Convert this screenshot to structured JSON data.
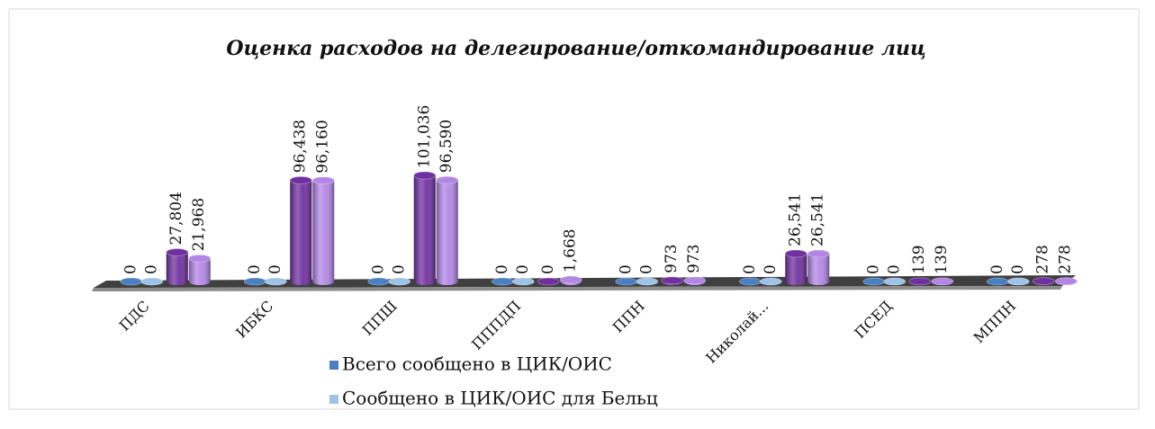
{
  "chart_data": {
    "type": "bar3d",
    "title": "Оценка расходов на делегирование/откомандирование лиц",
    "categories": [
      "ПДС",
      "ИБКС",
      "ППШ",
      "ПППДП",
      "ППН",
      "Николай...",
      "ПСЕД",
      "МППН"
    ],
    "series": [
      {
        "name": "Всего сообщено в ЦИК/ОИС",
        "color": "#4a7fc1",
        "values": [
          0,
          0,
          0,
          0,
          0,
          0,
          0,
          0
        ],
        "value_labels": [
          "0",
          "0",
          "0",
          "0",
          "0",
          "0",
          "0",
          "0"
        ]
      },
      {
        "name": "Сообщено в ЦИК/ОИС для Бельц",
        "color": "#9dc3e6",
        "values": [
          0,
          0,
          0,
          0,
          0,
          0,
          0,
          0
        ],
        "value_labels": [
          "0",
          "0",
          "0",
          "0",
          "0",
          "0",
          "0",
          "0"
        ]
      },
      {
        "color": "#7030a0",
        "values": [
          27804,
          96438,
          101036,
          0,
          973,
          26541,
          139,
          278
        ],
        "value_labels": [
          "27,804",
          "96,438",
          "101,036",
          "0",
          "973",
          "26,541",
          "139",
          "278"
        ]
      },
      {
        "color": "#b386e6",
        "values": [
          21968,
          96160,
          96590,
          1668,
          973,
          26541,
          139,
          278
        ],
        "value_labels": [
          "21,968",
          "96,160",
          "96,590",
          "1,668",
          "973",
          "26,541",
          "139",
          "278"
        ]
      }
    ]
  }
}
